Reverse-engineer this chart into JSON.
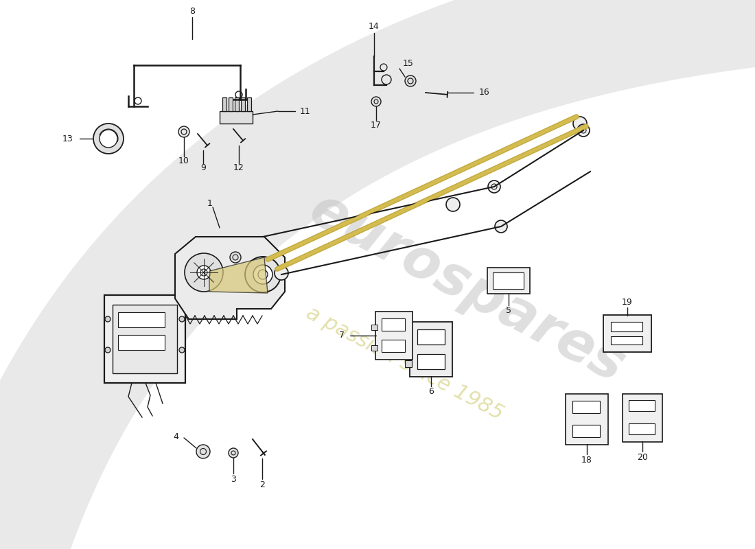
{
  "bg_color": "#ffffff",
  "lc": "#1a1a1a",
  "fs": 9,
  "watermark1": "eurospares",
  "watermark2": "a passion since 1985",
  "swoosh_color": "#e0e0e0",
  "arm_color": "#c8b84a",
  "part_fill": "#f2f2f2",
  "part_edge": "#1a1a1a"
}
